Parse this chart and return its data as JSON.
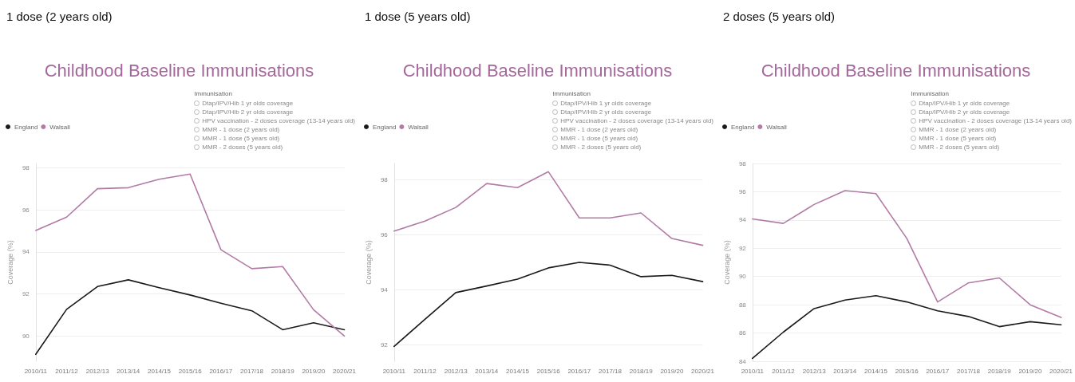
{
  "chart_data": [
    {
      "type": "line",
      "title": "Childhood Baseline Immunisations",
      "ylabel": "Coverage (%)",
      "annotations": [
        "1 dose (2 years old)",
        "Immunisation",
        "Dtap/IPV/Hib 1 yr olds coverage",
        "Dtap/IPV/Hib 2 yr olds coverage",
        "HPV vaccination - 2 doses coverage (13-14 years old)",
        "MMR - 1 dose (2 years old)",
        "MMR - 1 dose (5 years old)",
        "MMR - 2 doses (5 years old)"
      ],
      "categories": [
        "2010/11",
        "2011/12",
        "2012/13",
        "2013/14",
        "2014/15",
        "2015/16",
        "2016/17",
        "2017/18",
        "2018/19",
        "2019/20",
        "2020/21"
      ],
      "series": [
        {
          "name": "England",
          "color": "#1a1a1a",
          "values": [
            89.13,
            91.27,
            92.35,
            92.67,
            92.3,
            91.95,
            91.56,
            91.2,
            90.3,
            90.63,
            90.3
          ]
        },
        {
          "name": "Walsall",
          "color": "#b27ba6",
          "values": [
            95.02,
            95.65,
            97.0,
            97.05,
            97.45,
            97.7,
            94.1,
            93.2,
            93.3,
            91.25,
            90.0
          ]
        }
      ],
      "ylim": [
        88.8,
        98.2
      ],
      "yticks": [
        90,
        92,
        94,
        96,
        98
      ],
      "grid": "y",
      "legend": "top left",
      "marker": "none",
      "line_style": "solid"
    },
    {
      "type": "line",
      "title": "Childhood Baseline Immunisations",
      "ylabel": "Coverage (%)",
      "annotations": [
        "1 dose (5 years old)",
        "Immunisation",
        "Dtap/IPV/Hib 1 yr olds coverage",
        "Dtap/IPV/Hib 2 yr olds coverage",
        "HPV vaccination - 2 doses coverage (13-14 years old)",
        "MMR - 1 dose (2 years old)",
        "MMR - 1 dose (5 years old)",
        "MMR - 2 doses (5 years old)"
      ],
      "categories": [
        "2010/11",
        "2011/12",
        "2012/13",
        "2013/14",
        "2014/15",
        "2015/16",
        "2016/17",
        "2017/18",
        "2018/19",
        "2019/20",
        "2020/21"
      ],
      "series": [
        {
          "name": "England",
          "color": "#1a1a1a",
          "values": [
            91.94,
            92.93,
            93.9,
            94.14,
            94.39,
            94.8,
            95.0,
            94.9,
            94.48,
            94.53,
            94.3
          ]
        },
        {
          "name": "Walsall",
          "color": "#b27ba6",
          "values": [
            96.14,
            96.5,
            97.0,
            97.87,
            97.72,
            98.3,
            96.62,
            96.62,
            96.8,
            95.87,
            95.62
          ]
        }
      ],
      "ylim": [
        91.4,
        98.6
      ],
      "yticks": [
        92,
        94,
        96,
        98
      ],
      "grid": "y",
      "legend": "top left",
      "marker": "none",
      "line_style": "solid"
    },
    {
      "type": "line",
      "title": "Childhood Baseline Immunisations",
      "ylabel": "Coverage (%)",
      "annotations": [
        "2 doses (5 years old)",
        "Immunisation",
        "Dtap/IPV/Hib 1 yr olds coverage",
        "Dtap/IPV/Hib 2 yr olds coverage",
        "HPV vaccination - 2 doses coverage (13-14 years old)",
        "MMR - 1 dose (2 years old)",
        "MMR - 1 dose (5 years old)",
        "MMR - 2 doses (5 years old)"
      ],
      "categories": [
        "2010/11",
        "2011/12",
        "2012/13",
        "2013/14",
        "2014/15",
        "2015/16",
        "2016/17",
        "2017/18",
        "2018/19",
        "2019/20",
        "2020/21"
      ],
      "series": [
        {
          "name": "England",
          "color": "#1a1a1a",
          "values": [
            84.2,
            86.06,
            87.73,
            88.33,
            88.64,
            88.2,
            87.57,
            87.17,
            86.45,
            86.8,
            86.58
          ]
        },
        {
          "name": "Walsall",
          "color": "#b27ba6",
          "values": [
            94.08,
            93.76,
            95.1,
            96.08,
            95.87,
            92.7,
            88.2,
            89.55,
            89.9,
            88.0,
            87.1
          ]
        }
      ],
      "ylim": [
        84,
        98
      ],
      "yticks": [
        84,
        86,
        88,
        90,
        92,
        94,
        96,
        98
      ],
      "grid": "y",
      "legend": "top left",
      "marker": "none",
      "line_style": "solid"
    }
  ]
}
